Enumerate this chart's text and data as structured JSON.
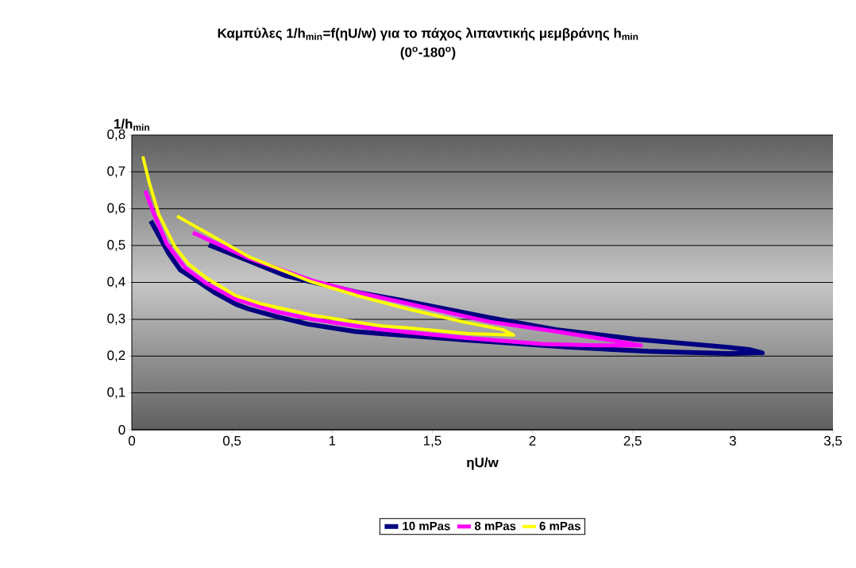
{
  "chart_data": {
    "type": "line",
    "title": "Καμπύλες 1/h$_{min}$=f(ηU/w) για το πάχος λιπαντικής μεμβράνης h$_{min}$",
    "subtitle": "(0$^{o}$-180$^{o}$)",
    "xlabel": "ηU/w",
    "ylabel": "1/h$_{min}$",
    "xlim": [
      0,
      3.5
    ],
    "ylim": [
      0,
      0.8
    ],
    "xticks": [
      0,
      {
        "value": 0.5,
        "label": "0,5"
      },
      1,
      {
        "value": 1.5,
        "label": "1,5"
      },
      2,
      {
        "value": 2.5,
        "label": "2,5"
      },
      3,
      {
        "value": 3.5,
        "label": "3,5"
      }
    ],
    "yticks": [
      0,
      {
        "value": 0.1,
        "label": "0,1"
      },
      {
        "value": 0.2,
        "label": "0,2"
      },
      {
        "value": 0.3,
        "label": "0,3"
      },
      {
        "value": 0.4,
        "label": "0,4"
      },
      {
        "value": 0.5,
        "label": "0,5"
      },
      {
        "value": 0.6,
        "label": "0,6"
      },
      {
        "value": 0.7,
        "label": "0,7"
      },
      {
        "value": 0.8,
        "label": "0,8"
      }
    ],
    "grid": "y",
    "legend": "bottom",
    "marker": "none",
    "line_style": "solid",
    "series": [
      {
        "name": "10 mPas",
        "color": "#000080",
        "x": [
          0.095,
          0.186,
          0.242,
          0.321,
          0.412,
          0.519,
          0.583,
          0.717,
          0.876,
          1.114,
          1.245,
          1.653,
          2.184,
          2.58,
          2.977,
          3.147,
          3.08,
          2.977,
          2.513,
          2.117,
          1.787,
          1.391,
          1.126,
          0.9,
          0.769,
          0.583,
          0.384
        ],
        "values": [
          0.567,
          0.477,
          0.434,
          0.406,
          0.373,
          0.341,
          0.328,
          0.308,
          0.287,
          0.267,
          0.261,
          0.244,
          0.224,
          0.213,
          0.207,
          0.209,
          0.218,
          0.224,
          0.246,
          0.272,
          0.304,
          0.347,
          0.373,
          0.401,
          0.418,
          0.459,
          0.502
        ]
      },
      {
        "name": "8 mPas",
        "color": "#ff00ff",
        "x": [
          0.067,
          0.107,
          0.174,
          0.266,
          0.373,
          0.519,
          0.717,
          0.9,
          1.114,
          1.245,
          1.653,
          2.049,
          2.315,
          2.541,
          2.382,
          2.117,
          1.787,
          1.391,
          1.126,
          0.9,
          0.583,
          0.305
        ],
        "values": [
          0.649,
          0.591,
          0.505,
          0.44,
          0.397,
          0.354,
          0.321,
          0.3,
          0.282,
          0.272,
          0.25,
          0.233,
          0.229,
          0.229,
          0.244,
          0.267,
          0.293,
          0.341,
          0.373,
          0.405,
          0.466,
          0.535
        ]
      },
      {
        "name": "6 mPas",
        "color": "#ffff00",
        "x": [
          0.055,
          0.087,
          0.135,
          0.214,
          0.281,
          0.373,
          0.519,
          0.638,
          0.9,
          1.114,
          1.245,
          1.391,
          1.681,
          1.906,
          1.851,
          1.653,
          1.391,
          1.126,
          0.9,
          0.583,
          0.226
        ],
        "values": [
          0.742,
          0.671,
          0.584,
          0.498,
          0.451,
          0.412,
          0.364,
          0.343,
          0.311,
          0.293,
          0.282,
          0.276,
          0.261,
          0.257,
          0.272,
          0.293,
          0.326,
          0.364,
          0.401,
          0.47,
          0.58
        ]
      }
    ]
  }
}
